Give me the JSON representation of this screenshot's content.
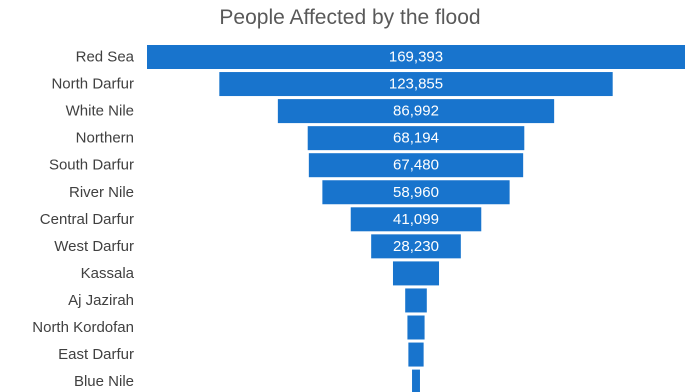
{
  "chart_data": {
    "type": "bar",
    "orientation": "horizontal",
    "layout": "funnel (bars centered)",
    "title": "People Affected by the flood",
    "categories": [
      "Red Sea",
      "North Darfur",
      "White Nile",
      "Northern",
      "South Darfur",
      "River Nile",
      "Central Darfur",
      "West Darfur",
      "Kassala",
      "Aj Jazirah",
      "North Kordofan",
      "East Darfur",
      "Blue Nile"
    ],
    "values": [
      169393,
      123855,
      86992,
      68194,
      67480,
      58960,
      41099,
      28230,
      14500,
      6800,
      5400,
      4800,
      2500
    ],
    "data_labels": [
      "169,393",
      "123,855",
      "86,992",
      "68,194",
      "67,480",
      "58,960",
      "41,099",
      "28,230",
      "",
      "",
      "",
      "",
      ""
    ],
    "bar_color": "#1874CD",
    "label_color": "#ffffff",
    "category_label_color": "#404040",
    "grid": false,
    "legend": "none"
  }
}
